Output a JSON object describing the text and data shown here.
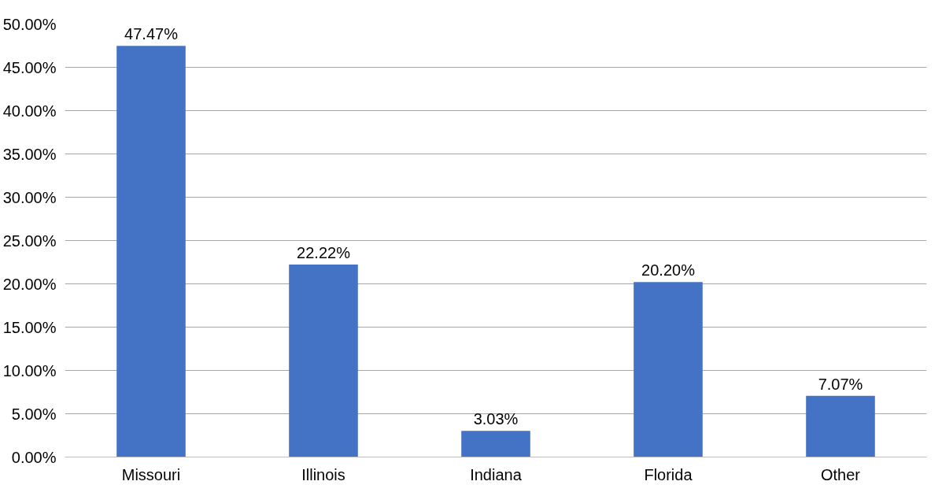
{
  "chart_data": {
    "type": "bar",
    "categories": [
      "Missouri",
      "Illinois",
      "Indiana",
      "Florida",
      "Other"
    ],
    "values": [
      47.47,
      22.22,
      3.03,
      20.2,
      7.07
    ],
    "value_labels": [
      "47.47%",
      "22.22%",
      "3.03%",
      "20.20%",
      "7.07%"
    ],
    "color": "#4472c4",
    "ylim": [
      0,
      50
    ],
    "yticks": [
      {
        "value": 0,
        "label": "0.00%"
      },
      {
        "value": 5,
        "label": "5.00%"
      },
      {
        "value": 10,
        "label": "10.00%"
      },
      {
        "value": 15,
        "label": "15.00%"
      },
      {
        "value": 20,
        "label": "20.00%"
      },
      {
        "value": 25,
        "label": "25.00%"
      },
      {
        "value": 30,
        "label": "30.00%"
      },
      {
        "value": 35,
        "label": "35.00%"
      },
      {
        "value": 40,
        "label": "40.00%"
      },
      {
        "value": 45,
        "label": "45.00%"
      },
      {
        "value": 50,
        "label": "50.00%"
      }
    ],
    "grid": "y"
  }
}
